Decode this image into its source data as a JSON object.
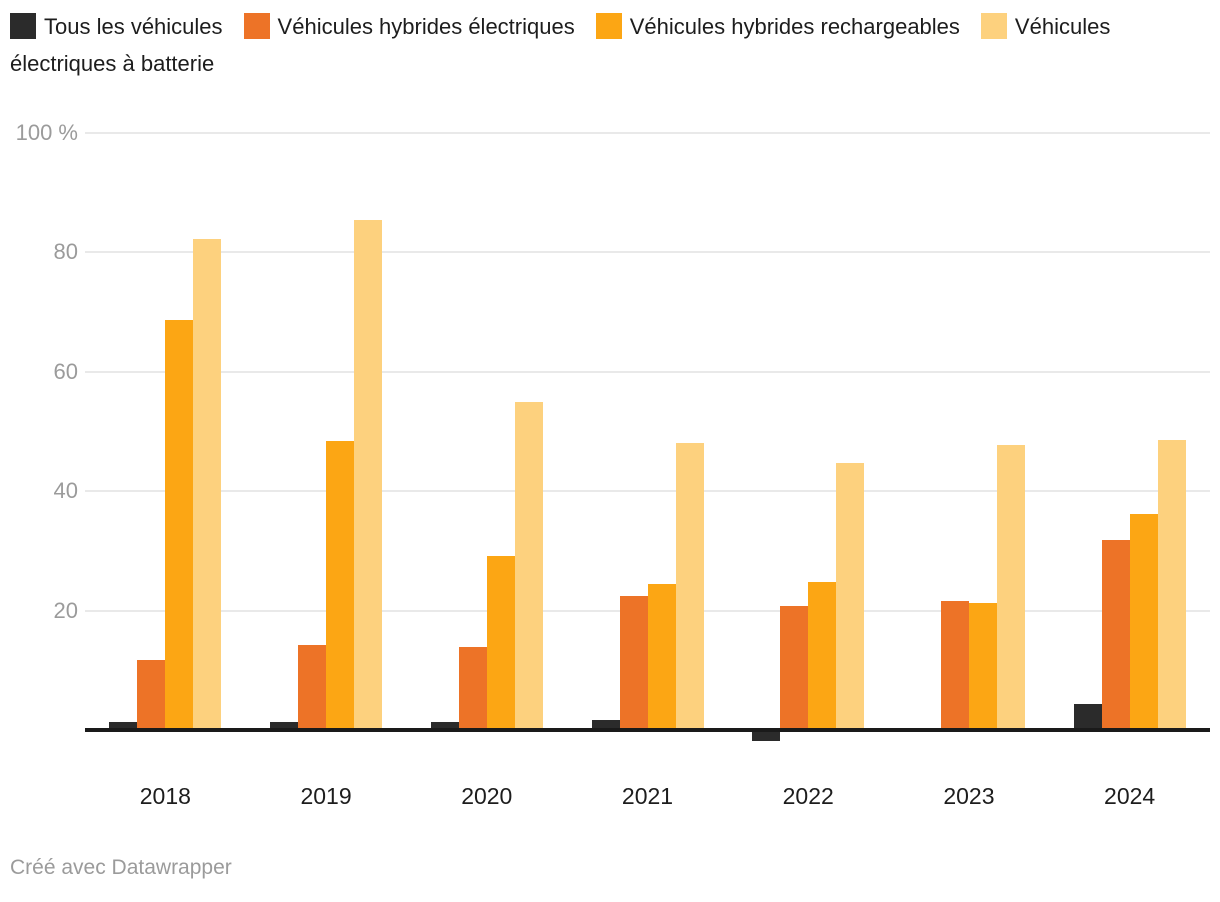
{
  "chart_data": {
    "type": "bar",
    "title": "",
    "categories": [
      "2018",
      "2019",
      "2020",
      "2021",
      "2022",
      "2023",
      "2024"
    ],
    "series": [
      {
        "name": "Tous les véhicules",
        "color": "#2b2b2b",
        "values": [
          1.4,
          1.3,
          1.3,
          1.6,
          -1.8,
          0,
          4.3
        ]
      },
      {
        "name": "Véhicules hybrides électriques",
        "color": "#ed7327",
        "values": [
          11.7,
          14.3,
          13.9,
          22.4,
          20.7,
          21.6,
          31.9
        ]
      },
      {
        "name": "Véhicules hybrides rechargeables",
        "color": "#fca614",
        "values": [
          68.6,
          48.4,
          29.1,
          24.4,
          24.8,
          21.2,
          36.2
        ]
      },
      {
        "name": "Véhicules électriques à batterie",
        "color": "#fdd17e",
        "values": [
          82.2,
          85.4,
          55.0,
          48.0,
          44.8,
          47.8,
          48.6
        ]
      }
    ],
    "xlabel": "",
    "ylabel": "%",
    "ylim": [
      0,
      100
    ],
    "y_ticks": [
      {
        "value": 100,
        "label": "100 %"
      },
      {
        "value": 80,
        "label": "80"
      },
      {
        "value": 60,
        "label": "60"
      },
      {
        "value": 40,
        "label": "40"
      },
      {
        "value": 20,
        "label": "20"
      }
    ],
    "grid": true,
    "legend_position": "top"
  },
  "colors": {
    "grid": "#e9e9e9",
    "baseline": "#1a1a1a",
    "axis_text": "#9b9b9b",
    "x_axis_text": "#1d1d1d",
    "legend_text": "#1d1d1d"
  },
  "footer": {
    "credit": "Créé avec Datawrapper"
  }
}
